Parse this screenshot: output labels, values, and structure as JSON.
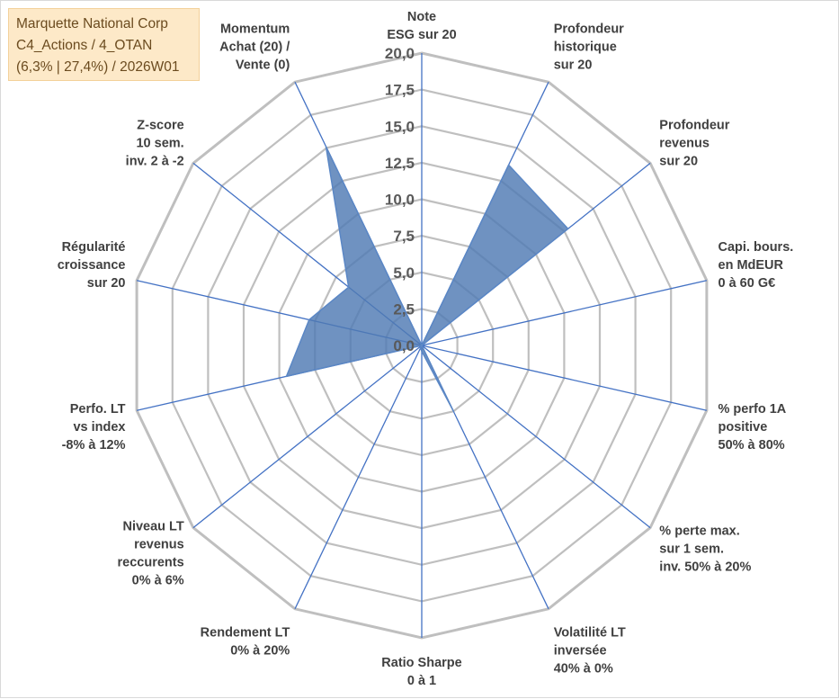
{
  "info": {
    "company": "Marquette National Corp",
    "line2": "C4_Actions / 4_OTAN",
    "line3": "(6,3% | 27,4%) / 2026W01"
  },
  "colors": {
    "grid": "#bfbfbf",
    "spoke": "#4472c4",
    "fill": "#4f7ab3",
    "fill_stroke": "#5b87c5",
    "info_bg": "#fde9c8"
  },
  "chart_data": {
    "type": "radar",
    "rmin": 0,
    "rmax": 20,
    "step": 2.5,
    "tick_labels": [
      "0,0",
      "2,5",
      "5,0",
      "7,5",
      "10,0",
      "12,5",
      "15,0",
      "17,5",
      "20,0"
    ],
    "categories": [
      [
        "Note",
        "ESG sur 20"
      ],
      [
        "Profondeur",
        "historique",
        "sur 20"
      ],
      [
        "Profondeur",
        "revenus",
        "sur 20"
      ],
      [
        "Capi. bours.",
        "en MdEUR",
        "0 à 60 G€"
      ],
      [
        "% perfo 1A",
        "positive",
        "50% à 80%"
      ],
      [
        "% perte max.",
        "sur 1 sem.",
        "inv. 50% à 20%"
      ],
      [
        "Volatilité LT",
        "inversée",
        "40% à 0%"
      ],
      [
        "Ratio Sharpe",
        "0 à 1"
      ],
      [
        "Rendement LT",
        "0% à 20%"
      ],
      [
        "Niveau LT",
        "revenus",
        "reccurents",
        "0% à 6%"
      ],
      [
        "Perfo. LT",
        "vs index",
        "-8% à 12%"
      ],
      [
        "Régularité",
        "croissance",
        "sur 20"
      ],
      [
        "Z-score",
        "10 sem.",
        "inv. 2 à -2"
      ],
      [
        "Momentum",
        "Achat (20) /",
        "Vente (0)"
      ]
    ],
    "series": [
      {
        "name": "Marquette National Corp",
        "values": [
          0,
          13.7,
          12.8,
          0,
          0,
          0,
          5.0,
          0.4,
          0.2,
          0,
          9.5,
          7.9,
          6.4,
          15.1
        ]
      }
    ]
  }
}
